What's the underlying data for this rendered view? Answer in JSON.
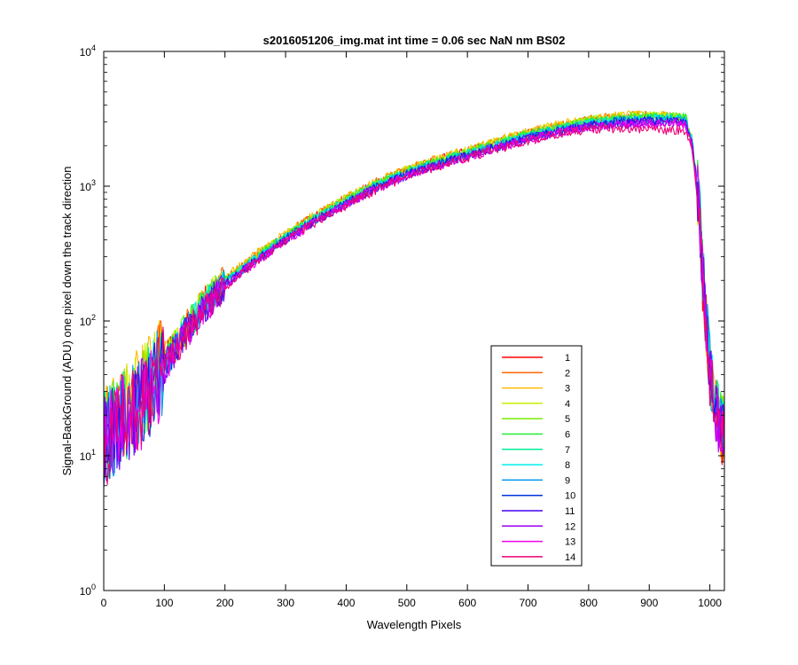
{
  "chart_data": {
    "type": "line",
    "title": "s2016051206_img.mat int time = 0.06 sec  NaN nm BS02",
    "xlabel": "Wavelength Pixels",
    "ylabel": "Signal-BackGround (ADU) one pixel down the track direction",
    "xlim": [
      0,
      1024
    ],
    "ylim": [
      1,
      10000
    ],
    "yscale": "log",
    "grid": false,
    "legend_position": "inside-lower-right",
    "x_ticks": [
      "0",
      "100",
      "200",
      "300",
      "400",
      "500",
      "600",
      "700",
      "800",
      "900",
      "1000"
    ],
    "x_tick_values": [
      0,
      100,
      200,
      300,
      400,
      500,
      600,
      700,
      800,
      900,
      1000
    ],
    "y_tick_values": [
      1,
      10,
      100,
      1000,
      10000
    ],
    "y_tick_bases": [
      "10",
      "10",
      "10",
      "10",
      "10"
    ],
    "y_tick_exponents": [
      "0",
      "1",
      "2",
      "3",
      "4"
    ],
    "x": [
      0,
      10,
      20,
      30,
      40,
      50,
      60,
      70,
      80,
      90,
      100,
      120,
      140,
      160,
      180,
      200,
      250,
      300,
      350,
      400,
      450,
      500,
      550,
      600,
      650,
      700,
      750,
      800,
      850,
      900,
      930,
      950,
      960,
      970,
      980,
      990,
      1000,
      1010,
      1020,
      1024
    ],
    "series": [
      {
        "name": "1",
        "color": "#ff0000",
        "values": [
          14,
          16,
          18,
          20,
          22,
          24,
          27,
          31,
          36,
          42,
          50,
          70,
          95,
          125,
          160,
          200,
          300,
          430,
          600,
          800,
          1050,
          1300,
          1550,
          1800,
          2100,
          2450,
          2750,
          3000,
          3200,
          3250,
          3200,
          3100,
          2900,
          2000,
          800,
          150,
          40,
          20,
          15,
          15
        ]
      },
      {
        "name": "2",
        "color": "#ff6600",
        "values": [
          15,
          17,
          19,
          21,
          23,
          25,
          28,
          32,
          37,
          43,
          51,
          72,
          97,
          128,
          163,
          205,
          305,
          440,
          610,
          815,
          1070,
          1330,
          1580,
          1840,
          2150,
          2500,
          2800,
          3100,
          3300,
          3350,
          3300,
          3200,
          3000,
          2100,
          850,
          160,
          42,
          21,
          16,
          16
        ]
      },
      {
        "name": "3",
        "color": "#ffbb00",
        "values": [
          15,
          17,
          19,
          21,
          23,
          26,
          29,
          33,
          38,
          44,
          52,
          73,
          98,
          130,
          165,
          208,
          310,
          445,
          620,
          825,
          1080,
          1350,
          1600,
          1860,
          2180,
          2550,
          2850,
          3150,
          3350,
          3400,
          3350,
          3250,
          3050,
          2150,
          870,
          165,
          43,
          22,
          16,
          16
        ]
      },
      {
        "name": "4",
        "color": "#ccee00",
        "values": [
          14,
          16,
          18,
          20,
          22,
          25,
          28,
          32,
          37,
          43,
          51,
          71,
          96,
          127,
          162,
          203,
          302,
          435,
          605,
          808,
          1060,
          1320,
          1570,
          1830,
          2140,
          2500,
          2800,
          3100,
          3300,
          3350,
          3300,
          3250,
          3100,
          2200,
          900,
          170,
          44,
          22,
          16,
          16
        ]
      },
      {
        "name": "5",
        "color": "#77ee00",
        "values": [
          14,
          16,
          18,
          20,
          22,
          24,
          27,
          31,
          36,
          42,
          50,
          70,
          95,
          125,
          160,
          200,
          298,
          428,
          598,
          798,
          1045,
          1300,
          1550,
          1800,
          2100,
          2450,
          2750,
          3050,
          3250,
          3300,
          3280,
          3250,
          3150,
          2300,
          950,
          180,
          45,
          22,
          16,
          16
        ]
      },
      {
        "name": "6",
        "color": "#22ee33",
        "values": [
          13,
          15,
          17,
          19,
          21,
          23,
          26,
          30,
          35,
          41,
          49,
          69,
          93,
          123,
          158,
          198,
          295,
          425,
          590,
          790,
          1035,
          1290,
          1530,
          1780,
          2080,
          2420,
          2720,
          3000,
          3200,
          3250,
          3250,
          3250,
          3200,
          2400,
          1000,
          190,
          46,
          23,
          16,
          16
        ]
      },
      {
        "name": "7",
        "color": "#00ee99",
        "values": [
          13,
          15,
          17,
          19,
          21,
          23,
          26,
          30,
          35,
          41,
          49,
          68,
          92,
          121,
          156,
          195,
          292,
          420,
          585,
          780,
          1020,
          1270,
          1510,
          1760,
          2050,
          2380,
          2680,
          2950,
          3150,
          3200,
          3200,
          3200,
          3150,
          2350,
          980,
          185,
          46,
          23,
          16,
          16
        ]
      },
      {
        "name": "8",
        "color": "#00eeee",
        "values": [
          13,
          15,
          17,
          19,
          21,
          23,
          26,
          29,
          34,
          40,
          48,
          67,
          91,
          120,
          154,
          193,
          290,
          415,
          578,
          770,
          1010,
          1255,
          1490,
          1740,
          2030,
          2350,
          2650,
          2920,
          3100,
          3150,
          3150,
          3150,
          3100,
          2300,
          960,
          180,
          45,
          22,
          15,
          15
        ]
      },
      {
        "name": "9",
        "color": "#0099ee",
        "values": [
          12,
          14,
          16,
          18,
          20,
          22,
          25,
          29,
          34,
          40,
          47,
          66,
          90,
          118,
          152,
          190,
          286,
          410,
          570,
          760,
          995,
          1240,
          1470,
          1720,
          2000,
          2320,
          2600,
          2870,
          3050,
          3100,
          3100,
          3100,
          3050,
          2250,
          940,
          175,
          44,
          22,
          15,
          15
        ]
      },
      {
        "name": "10",
        "color": "#0033dd",
        "values": [
          12,
          14,
          16,
          18,
          20,
          22,
          25,
          28,
          33,
          39,
          46,
          65,
          88,
          116,
          149,
          187,
          282,
          405,
          563,
          750,
          985,
          1225,
          1455,
          1700,
          1980,
          2290,
          2570,
          2830,
          3000,
          3050,
          3050,
          3050,
          3000,
          2200,
          920,
          170,
          43,
          21,
          15,
          15
        ]
      },
      {
        "name": "11",
        "color": "#4400ee",
        "values": [
          12,
          14,
          16,
          18,
          20,
          22,
          24,
          28,
          33,
          38,
          45,
          64,
          87,
          114,
          147,
          185,
          278,
          400,
          556,
          742,
          975,
          1210,
          1440,
          1680,
          1960,
          2260,
          2540,
          2800,
          2950,
          3000,
          3000,
          3000,
          2950,
          2150,
          900,
          168,
          42,
          21,
          15,
          15
        ]
      },
      {
        "name": "12",
        "color": "#9900ee",
        "values": [
          12,
          14,
          16,
          18,
          20,
          22,
          24,
          28,
          32,
          38,
          45,
          63,
          86,
          113,
          145,
          183,
          275,
          396,
          550,
          735,
          965,
          1200,
          1425,
          1660,
          1940,
          2240,
          2510,
          2770,
          2900,
          2950,
          2950,
          2950,
          2900,
          2100,
          880,
          165,
          41,
          20,
          14,
          14
        ]
      },
      {
        "name": "13",
        "color": "#ee00ee",
        "values": [
          12,
          14,
          16,
          18,
          20,
          22,
          24,
          27,
          32,
          37,
          44,
          62,
          85,
          112,
          144,
          181,
          272,
          392,
          545,
          728,
          955,
          1190,
          1410,
          1645,
          1920,
          2210,
          2480,
          2730,
          2850,
          2900,
          2900,
          2900,
          2850,
          2050,
          860,
          162,
          40,
          20,
          14,
          14
        ]
      },
      {
        "name": "14",
        "color": "#ee0077",
        "values": [
          12,
          14,
          16,
          18,
          20,
          22,
          24,
          27,
          32,
          37,
          44,
          62,
          84,
          110,
          142,
          179,
          268,
          388,
          540,
          720,
          945,
          1175,
          1395,
          1630,
          1900,
          2180,
          2440,
          2650,
          2700,
          2650,
          2600,
          2600,
          2550,
          1900,
          820,
          160,
          40,
          20,
          14,
          14
        ]
      }
    ]
  }
}
